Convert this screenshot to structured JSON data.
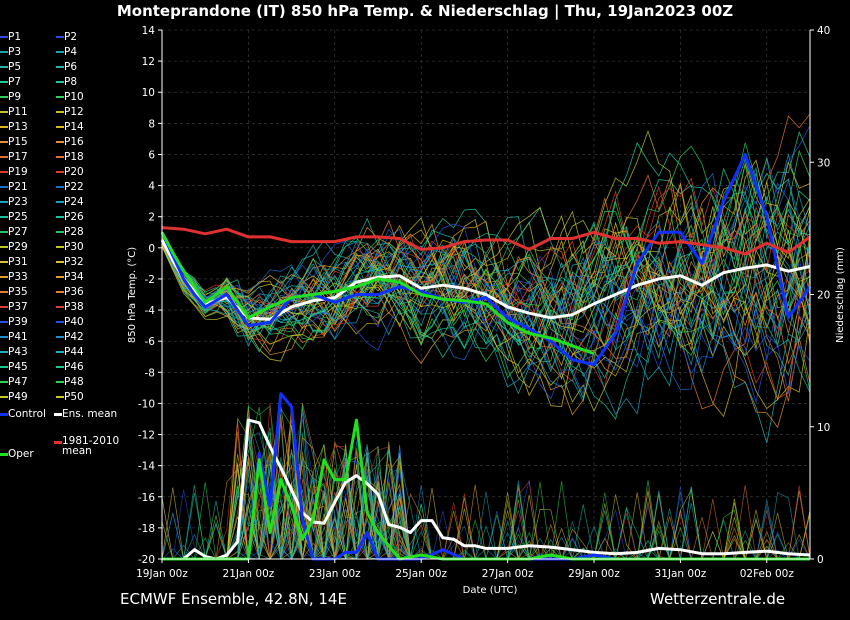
{
  "title": "Monteprandone  (IT)  850 hPa Temp. & Niederschlag | Thu, 19Jan2023 00Z",
  "footer": {
    "left": "ECMWF Ensemble, 42.8N, 14E",
    "right": "Wetterzentrale.de"
  },
  "legend": {
    "members": [
      "P1",
      "P2",
      "P3",
      "P4",
      "P5",
      "P6",
      "P7",
      "P8",
      "P9",
      "P10",
      "P11",
      "P12",
      "P13",
      "P14",
      "P15",
      "P16",
      "P17",
      "P18",
      "P19",
      "P20",
      "P21",
      "P22",
      "P23",
      "P24",
      "P25",
      "P26",
      "P27",
      "P28",
      "P29",
      "P30",
      "P31",
      "P32",
      "P33",
      "P34",
      "P35",
      "P36",
      "P37",
      "P38",
      "P39",
      "P40",
      "P41",
      "P42",
      "P43",
      "P44",
      "P45",
      "P46",
      "P47",
      "P48",
      "P49",
      "P50"
    ],
    "member_colors": [
      "#2a4fe0",
      "#2a4fe0",
      "#1aa6b0",
      "#1aa6b0",
      "#26b3a8",
      "#26b3a8",
      "#1fc8a0",
      "#1fc8a0",
      "#2fcf5a",
      "#2fcf5a",
      "#c8c020",
      "#c8c020",
      "#d8b020",
      "#d8b020",
      "#e09030",
      "#e09030",
      "#e07030",
      "#e07030",
      "#d84020",
      "#d84020",
      "#1a70d0",
      "#1a70d0",
      "#1aa0c0",
      "#1aa0c0",
      "#1ac0a0",
      "#1ac0a0",
      "#28c860",
      "#28c860",
      "#b8c820",
      "#b8c820",
      "#d8c030",
      "#d8c030",
      "#e0a020",
      "#e0a020",
      "#e08030",
      "#e08030",
      "#d84030",
      "#d84030",
      "#2a50e0",
      "#2a50e0",
      "#1a8ed0",
      "#1a8ed0",
      "#1ab0b8",
      "#1ab0b8",
      "#1ac890",
      "#1ac890",
      "#30d050",
      "#30d050",
      "#c8c828",
      "#c8c828"
    ],
    "control": "Control",
    "ens_mean": "Ens. mean",
    "climate": "1981-2010\nmean",
    "oper": "Oper",
    "colors": {
      "control": "#1030ff",
      "ens_mean": "#ffffff",
      "climate": "#e03030",
      "oper": "#20e020"
    }
  },
  "chart_data": {
    "type": "line",
    "xlabel": "Date (UTC)",
    "ylabel_left": "850 hPa Temp. (°C)",
    "ylabel_right": "Niederschlag (mm)",
    "ylim_left": [
      -20,
      14
    ],
    "ylim_right": [
      0,
      40
    ],
    "yticks_left": [
      -20,
      -18,
      -16,
      -14,
      -12,
      -10,
      -8,
      -6,
      -4,
      -2,
      0,
      2,
      4,
      6,
      8,
      10,
      12,
      14
    ],
    "yticks_right": [
      0,
      10,
      20,
      30,
      40
    ],
    "xlim_days": [
      0,
      15
    ],
    "xticks": [
      "19Jan 00z",
      "21Jan 00z",
      "23Jan 00z",
      "25Jan 00z",
      "27Jan 00z",
      "29Jan 00z",
      "31Jan 00z",
      "02Feb 00z"
    ],
    "xtick_days": [
      0,
      2,
      4,
      6,
      8,
      10,
      12,
      14
    ],
    "grid": true,
    "series": [
      {
        "name": "Ens. mean",
        "color": "#ffffff",
        "x": [
          0,
          0.25,
          0.5,
          0.75,
          1,
          1.5,
          2,
          2.5,
          3,
          3.5,
          4,
          4.5,
          5,
          5.5,
          6,
          6.5,
          7,
          7.5,
          8,
          8.5,
          9,
          9.5,
          10,
          10.5,
          11,
          11.5,
          12,
          12.5,
          13,
          13.5,
          14,
          14.5,
          15
        ],
        "y": [
          0.5,
          -0.8,
          -2.0,
          -2.8,
          -3.6,
          -3.2,
          -4.5,
          -4.6,
          -3.8,
          -3.4,
          -3.2,
          -2.2,
          -1.9,
          -1.8,
          -2.6,
          -2.4,
          -2.6,
          -3.0,
          -3.8,
          -4.2,
          -4.5,
          -4.3,
          -3.6,
          -3.0,
          -2.4,
          -2.0,
          -1.8,
          -2.4,
          -1.6,
          -1.3,
          -1.1,
          -1.5,
          -1.2
        ]
      },
      {
        "name": "Control",
        "color": "#1030ff",
        "x": [
          0,
          0.25,
          0.5,
          0.75,
          1,
          1.5,
          2,
          2.5,
          3,
          3.5,
          4,
          4.5,
          5,
          5.5,
          6,
          6.5,
          7,
          7.5,
          8,
          8.5,
          9,
          9.5,
          10,
          10.5,
          11,
          11.5,
          12,
          12.5,
          13,
          13.5,
          14,
          14.5,
          15
        ],
        "y": [
          1.0,
          -0.5,
          -2.0,
          -3.0,
          -3.8,
          -3.0,
          -5.0,
          -4.8,
          -3.2,
          -3.0,
          -3.5,
          -3.0,
          -3.0,
          -2.5,
          -2.8,
          -3.3,
          -3.5,
          -3.2,
          -4.5,
          -5.2,
          -6.0,
          -7.2,
          -7.5,
          -5.5,
          -1.0,
          1.0,
          1.0,
          -1.0,
          3.0,
          6.0,
          2.0,
          -4.5,
          -2.5
        ]
      },
      {
        "name": "Oper",
        "color": "#20e020",
        "x": [
          0,
          0.25,
          0.5,
          0.75,
          1,
          1.5,
          2,
          2.5,
          3,
          3.5,
          4,
          4.5,
          5,
          5.5,
          6,
          6.5,
          7,
          7.5,
          8,
          8.5,
          9,
          9.5,
          10
        ],
        "y": [
          1.0,
          -0.3,
          -1.5,
          -2.5,
          -3.5,
          -2.5,
          -4.5,
          -3.8,
          -3.2,
          -3.0,
          -2.8,
          -2.5,
          -2.0,
          -2.2,
          -3.0,
          -3.3,
          -3.4,
          -3.6,
          -4.8,
          -5.5,
          -5.8,
          -6.3,
          -6.8
        ]
      },
      {
        "name": "1981-2010 mean",
        "color": "#e03030",
        "x": [
          0,
          0.5,
          1,
          1.5,
          2,
          2.5,
          3,
          3.5,
          4,
          4.5,
          5,
          5.5,
          6,
          6.5,
          7,
          7.5,
          8,
          8.5,
          9,
          9.5,
          10,
          10.5,
          11,
          11.5,
          12,
          12.5,
          13,
          13.5,
          14,
          14.5,
          15
        ],
        "y": [
          1.3,
          1.2,
          0.9,
          1.2,
          0.7,
          0.7,
          0.4,
          0.4,
          0.4,
          0.7,
          0.7,
          0.6,
          -0.1,
          0.0,
          0.4,
          0.5,
          0.5,
          -0.1,
          0.6,
          0.6,
          1.0,
          0.6,
          0.6,
          0.3,
          0.4,
          0.2,
          0.0,
          -0.4,
          0.3,
          -0.3,
          0.7
        ]
      },
      {
        "name": "Ens. mean precip (mm)",
        "color": "#ffffff",
        "axis": "right",
        "x": [
          0,
          0.25,
          0.5,
          0.75,
          1,
          1.25,
          1.5,
          1.75,
          2,
          2.25,
          2.5,
          2.75,
          3,
          3.25,
          3.5,
          3.75,
          4,
          4.25,
          4.5,
          4.75,
          5,
          5.25,
          5.5,
          5.75,
          6,
          6.25,
          6.5,
          6.75,
          7,
          7.25,
          7.5,
          8,
          8.5,
          9,
          9.5,
          10,
          10.5,
          11,
          11.5,
          12,
          12.5,
          13,
          13.5,
          14,
          14.5,
          15
        ],
        "y": [
          0.0,
          0.0,
          0.0,
          0.7,
          0.2,
          0.0,
          0.3,
          1.3,
          10.5,
          10.3,
          8.5,
          6.9,
          5.2,
          3.5,
          2.8,
          2.7,
          4.3,
          5.8,
          6.3,
          5.7,
          4.9,
          2.6,
          2.4,
          2.0,
          2.9,
          2.9,
          1.6,
          1.5,
          1.0,
          1.0,
          0.8,
          0.8,
          1.0,
          0.9,
          0.7,
          0.5,
          0.4,
          0.5,
          0.8,
          0.7,
          0.4,
          0.4,
          0.5,
          0.6,
          0.4,
          0.3
        ]
      },
      {
        "name": "Control precip (mm)",
        "color": "#1030ff",
        "axis": "right",
        "x": [
          0,
          0.5,
          1,
          1.5,
          2,
          2.25,
          2.5,
          2.75,
          3,
          3.25,
          3.5,
          3.75,
          4,
          4.25,
          4.5,
          4.75,
          5,
          5.25,
          5.5,
          5.75,
          6,
          6.5,
          7,
          7.5,
          8,
          8.5,
          9,
          9.5,
          10,
          10.5,
          11,
          11.5,
          12,
          12.5,
          13,
          13.5,
          14,
          14.5,
          15
        ],
        "y": [
          0.0,
          0.0,
          0.0,
          0.0,
          0.0,
          8.0,
          4.0,
          12.5,
          11.5,
          3.0,
          0.0,
          0.0,
          0.0,
          0.5,
          0.5,
          2.0,
          0.0,
          0.0,
          0.0,
          0.0,
          0.0,
          0.7,
          0.0,
          0.0,
          0.0,
          0.0,
          0.0,
          0.0,
          0.3,
          0.0,
          0.0,
          0.0,
          0.0,
          0.0,
          0.0,
          0.0,
          0.0,
          0.0,
          0.0
        ]
      },
      {
        "name": "Oper precip (mm)",
        "color": "#20e020",
        "axis": "right",
        "x": [
          0,
          0.5,
          1,
          1.5,
          2,
          2.25,
          2.5,
          2.75,
          3,
          3.25,
          3.5,
          3.75,
          4,
          4.25,
          4.5,
          4.75,
          5,
          5.5,
          6,
          6.5,
          7,
          7.5,
          8,
          8.5,
          9,
          9.5,
          10,
          10.5,
          11,
          11.5,
          12,
          12.5,
          13,
          13.5,
          14,
          14.5,
          15
        ],
        "y": [
          0.0,
          0.0,
          0.0,
          0.0,
          0.0,
          7.5,
          2.0,
          6.0,
          4.0,
          1.5,
          3.0,
          7.5,
          6.0,
          6.0,
          10.5,
          3.5,
          2.0,
          0.0,
          0.3,
          0.0,
          0.0,
          0.0,
          0.0,
          0.0,
          0.3,
          0.0,
          0.0,
          0.0,
          0.0,
          0.0,
          0.0,
          0.0,
          0.0,
          0.0,
          0.0,
          0.0,
          0.0
        ]
      }
    ],
    "ensemble_spread_note": ""
  }
}
